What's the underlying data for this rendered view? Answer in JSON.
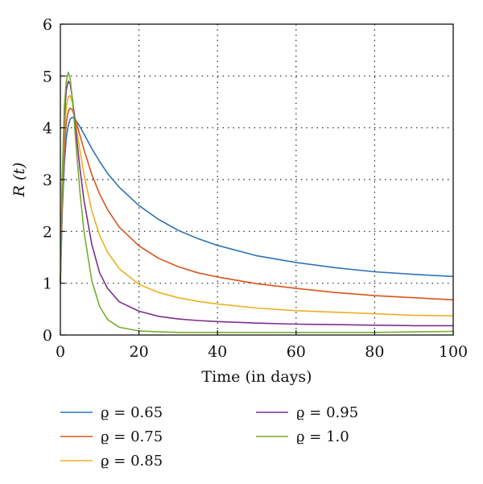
{
  "chart_data": {
    "type": "line",
    "title": "",
    "xlabel": "Time (in days)",
    "ylabel": "R (t)",
    "xlim": [
      0,
      100
    ],
    "ylim": [
      0,
      6
    ],
    "xticks": [
      0,
      20,
      40,
      60,
      80,
      100
    ],
    "yticks": [
      0,
      1,
      2,
      3,
      4,
      5,
      6
    ],
    "grid": true,
    "legend_placement": "below",
    "series": [
      {
        "name": "ϱ = 0.65",
        "color": "#2e73b8",
        "x": [
          0,
          0.5,
          1,
          1.5,
          2,
          2.5,
          3,
          3.5,
          4,
          5,
          6,
          8,
          10,
          12,
          15,
          20,
          25,
          30,
          35,
          40,
          50,
          60,
          70,
          80,
          90,
          100
        ],
        "y": [
          1.0,
          2.4,
          3.3,
          3.8,
          4.05,
          4.17,
          4.2,
          4.18,
          4.14,
          4.02,
          3.88,
          3.6,
          3.35,
          3.12,
          2.85,
          2.5,
          2.23,
          2.02,
          1.86,
          1.73,
          1.53,
          1.4,
          1.3,
          1.22,
          1.17,
          1.13
        ]
      },
      {
        "name": "ϱ = 0.75",
        "color": "#d9541e",
        "x": [
          0,
          0.5,
          1,
          1.5,
          2,
          2.5,
          3,
          3.5,
          4,
          5,
          6,
          8,
          10,
          12,
          15,
          20,
          25,
          30,
          35,
          40,
          50,
          60,
          70,
          80,
          90,
          100
        ],
        "y": [
          1.0,
          2.6,
          3.6,
          4.1,
          4.32,
          4.38,
          4.35,
          4.25,
          4.12,
          3.85,
          3.58,
          3.1,
          2.72,
          2.42,
          2.08,
          1.72,
          1.48,
          1.32,
          1.2,
          1.12,
          0.99,
          0.9,
          0.82,
          0.76,
          0.72,
          0.68
        ]
      },
      {
        "name": "ϱ = 0.85",
        "color": "#edb120",
        "x": [
          0,
          0.5,
          1,
          1.5,
          2,
          2.5,
          3,
          3.5,
          4,
          5,
          6,
          8,
          10,
          12,
          15,
          20,
          25,
          30,
          35,
          40,
          50,
          60,
          70,
          80,
          90,
          100
        ],
        "y": [
          1.0,
          2.8,
          3.9,
          4.4,
          4.6,
          4.62,
          4.5,
          4.3,
          4.05,
          3.55,
          3.1,
          2.4,
          1.92,
          1.6,
          1.28,
          0.98,
          0.82,
          0.72,
          0.65,
          0.6,
          0.52,
          0.47,
          0.44,
          0.41,
          0.38,
          0.37
        ]
      },
      {
        "name": "ϱ = 0.95",
        "color": "#7e2f8e",
        "x": [
          0,
          0.5,
          1,
          1.5,
          2,
          2.5,
          3,
          3.5,
          4,
          5,
          6,
          8,
          10,
          12,
          15,
          20,
          25,
          30,
          35,
          40,
          50,
          60,
          70,
          80,
          90,
          100
        ],
        "y": [
          1.0,
          3.0,
          4.2,
          4.72,
          4.9,
          4.85,
          4.6,
          4.28,
          3.9,
          3.2,
          2.6,
          1.75,
          1.2,
          0.9,
          0.64,
          0.46,
          0.36,
          0.31,
          0.28,
          0.26,
          0.23,
          0.21,
          0.2,
          0.19,
          0.18,
          0.18
        ]
      },
      {
        "name": "ϱ = 1.0",
        "color": "#77ac30",
        "x": [
          0,
          0.5,
          1,
          1.5,
          2,
          2.5,
          3,
          3.5,
          4,
          5,
          6,
          8,
          10,
          12,
          15,
          20,
          25,
          30,
          35,
          40,
          50,
          60,
          70,
          80,
          90,
          100
        ],
        "y": [
          1.0,
          3.1,
          4.4,
          4.9,
          5.07,
          4.95,
          4.6,
          4.15,
          3.65,
          2.75,
          2.0,
          1.05,
          0.55,
          0.3,
          0.15,
          0.08,
          0.06,
          0.05,
          0.05,
          0.05,
          0.05,
          0.05,
          0.05,
          0.05,
          0.06,
          0.07
        ]
      }
    ]
  }
}
